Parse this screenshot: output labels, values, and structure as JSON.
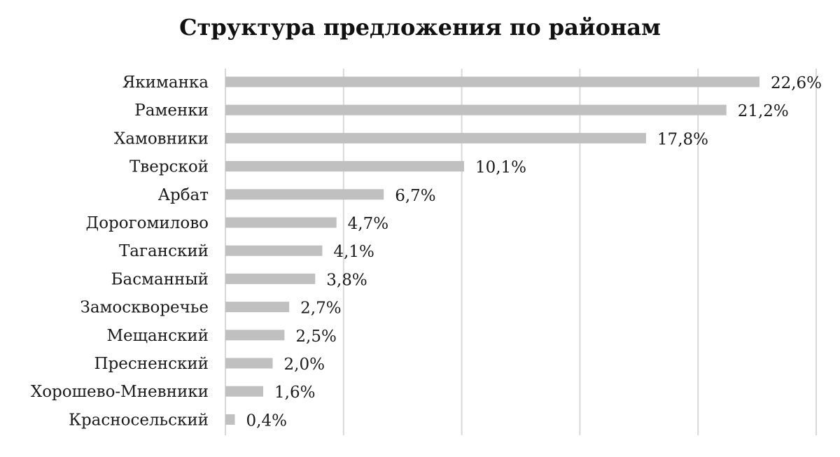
{
  "chart_data": {
    "type": "bar",
    "orientation": "horizontal",
    "title": "Структура предложения по районам",
    "categories": [
      "Якиманка",
      "Раменки",
      "Хамовники",
      "Тверской",
      "Арбат",
      "Дорогомилово",
      "Таганский",
      "Басманный",
      "Замоскворечье",
      "Мещанский",
      "Пресненский",
      "Хорошево-Мневники",
      "Красносельский"
    ],
    "values": [
      22.6,
      21.2,
      17.8,
      10.1,
      6.7,
      4.7,
      4.1,
      3.8,
      2.7,
      2.5,
      2.0,
      1.6,
      0.4
    ],
    "value_labels": [
      "22,6%",
      "21,2%",
      "17,8%",
      "10,1%",
      "6,7%",
      "4,7%",
      "4,1%",
      "3,8%",
      "2,7%",
      "2,5%",
      "2,0%",
      "1,6%",
      "0,4%"
    ],
    "xlim": [
      0,
      25
    ],
    "grid": true,
    "bar_color": "#c0c0c0",
    "grid_color": "#d9d9d9"
  }
}
